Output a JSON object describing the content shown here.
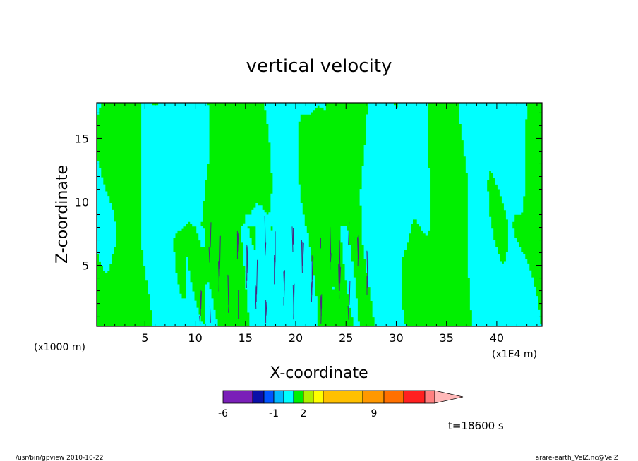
{
  "chart_data": {
    "type": "heatmap",
    "title": "vertical velocity",
    "xlabel": "X-coordinate",
    "ylabel": "Z-coordinate",
    "x_axis": {
      "unit_left": "(x1000 m)",
      "unit_right": "(x1E4 m)",
      "range": [
        0.2,
        44.5
      ],
      "ticks": [
        5,
        10,
        15,
        20,
        25,
        30,
        35,
        40
      ],
      "tick_labels": [
        "5",
        "10",
        "15",
        "20",
        "25",
        "30",
        "35",
        "40"
      ]
    },
    "y_axis": {
      "range": [
        0.2,
        17.8
      ],
      "ticks": [
        5,
        10,
        15
      ],
      "tick_labels": [
        "5",
        "10",
        "15"
      ]
    },
    "colorbar": {
      "colors": [
        "#7a1fb8",
        "#0a10a8",
        "#0055ff",
        "#00b8ff",
        "#00ffff",
        "#00f000",
        "#b0f000",
        "#ffff00",
        "#ffc000",
        "#ff9800",
        "#ff7000",
        "#ff2020",
        "#ff8080",
        "#ffb8b8"
      ],
      "tick_labels": [
        "-6",
        "-1",
        "2",
        "9"
      ],
      "extend": "max"
    },
    "dominant_levels": {
      "negative_color": "#00ffff",
      "positive_color": "#00f000",
      "contour_color": "#000000"
    },
    "grid": false
  },
  "annotations": {
    "time": "t=18600 s",
    "footer_left": "/usr/bin/gpview  2010-10-22",
    "footer_right": "arare-earth_VelZ.nc@VelZ"
  }
}
